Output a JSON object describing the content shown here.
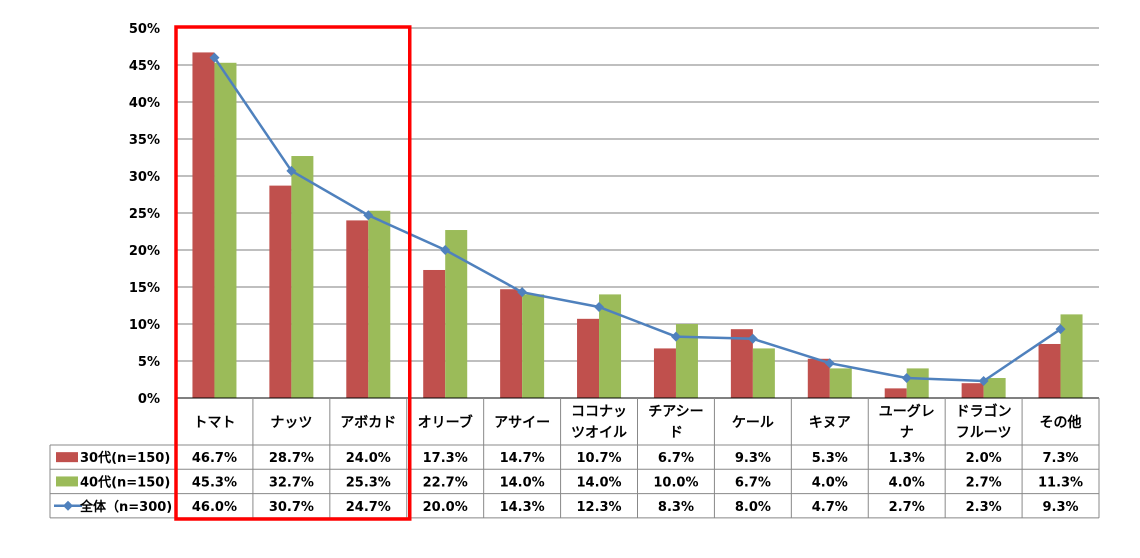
{
  "colors": {
    "series1": "#c0504d",
    "series2": "#9bbb59",
    "series3": "#4f81bd",
    "highlight": "#ff0000",
    "grid": "#7f7f7f"
  },
  "chart_data": {
    "type": "bar",
    "combo": "clustered bars (2 series) + line (1 series) with data table",
    "categories": [
      [
        "トマト"
      ],
      [
        "ナッツ"
      ],
      [
        "アボカド"
      ],
      [
        "オリーブ"
      ],
      [
        "アサイー"
      ],
      [
        "ココナッ",
        "ツオイル"
      ],
      [
        "チアシー",
        "ド"
      ],
      [
        "ケール"
      ],
      [
        "キヌア"
      ],
      [
        "ユーグレ",
        "ナ"
      ],
      [
        "ドラゴン",
        "フルーツ"
      ],
      [
        "その他"
      ]
    ],
    "series": [
      {
        "name": "30代(n=150)",
        "type": "bar",
        "values": [
          46.7,
          28.7,
          24.0,
          17.3,
          14.7,
          10.7,
          6.7,
          9.3,
          5.3,
          1.3,
          2.0,
          7.3
        ],
        "labels": [
          "46.7%",
          "28.7%",
          "24.0%",
          "17.3%",
          "14.7%",
          "10.7%",
          "6.7%",
          "9.3%",
          "5.3%",
          "1.3%",
          "2.0%",
          "7.3%"
        ]
      },
      {
        "name": "40代(n=150)",
        "type": "bar",
        "values": [
          45.3,
          32.7,
          25.3,
          22.7,
          14.0,
          14.0,
          10.0,
          6.7,
          4.0,
          4.0,
          2.7,
          11.3
        ],
        "labels": [
          "45.3%",
          "32.7%",
          "25.3%",
          "22.7%",
          "14.0%",
          "14.0%",
          "10.0%",
          "6.7%",
          "4.0%",
          "4.0%",
          "2.7%",
          "11.3%"
        ]
      },
      {
        "name": "全体（n=300)",
        "type": "line",
        "values": [
          46.0,
          30.7,
          24.7,
          20.0,
          14.3,
          12.3,
          8.3,
          8.0,
          4.7,
          2.7,
          2.3,
          9.3
        ],
        "labels": [
          "46.0%",
          "30.7%",
          "24.7%",
          "20.0%",
          "14.3%",
          "12.3%",
          "8.3%",
          "8.0%",
          "4.7%",
          "2.7%",
          "2.3%",
          "9.3%"
        ]
      }
    ],
    "y_ticks": [
      "0%",
      "5%",
      "10%",
      "15%",
      "20%",
      "25%",
      "30%",
      "35%",
      "40%",
      "45%",
      "50%"
    ],
    "ylim": [
      0,
      50
    ],
    "grid": true,
    "legend": "data-table-rows",
    "highlight_categories": [
      0,
      1,
      2
    ]
  }
}
